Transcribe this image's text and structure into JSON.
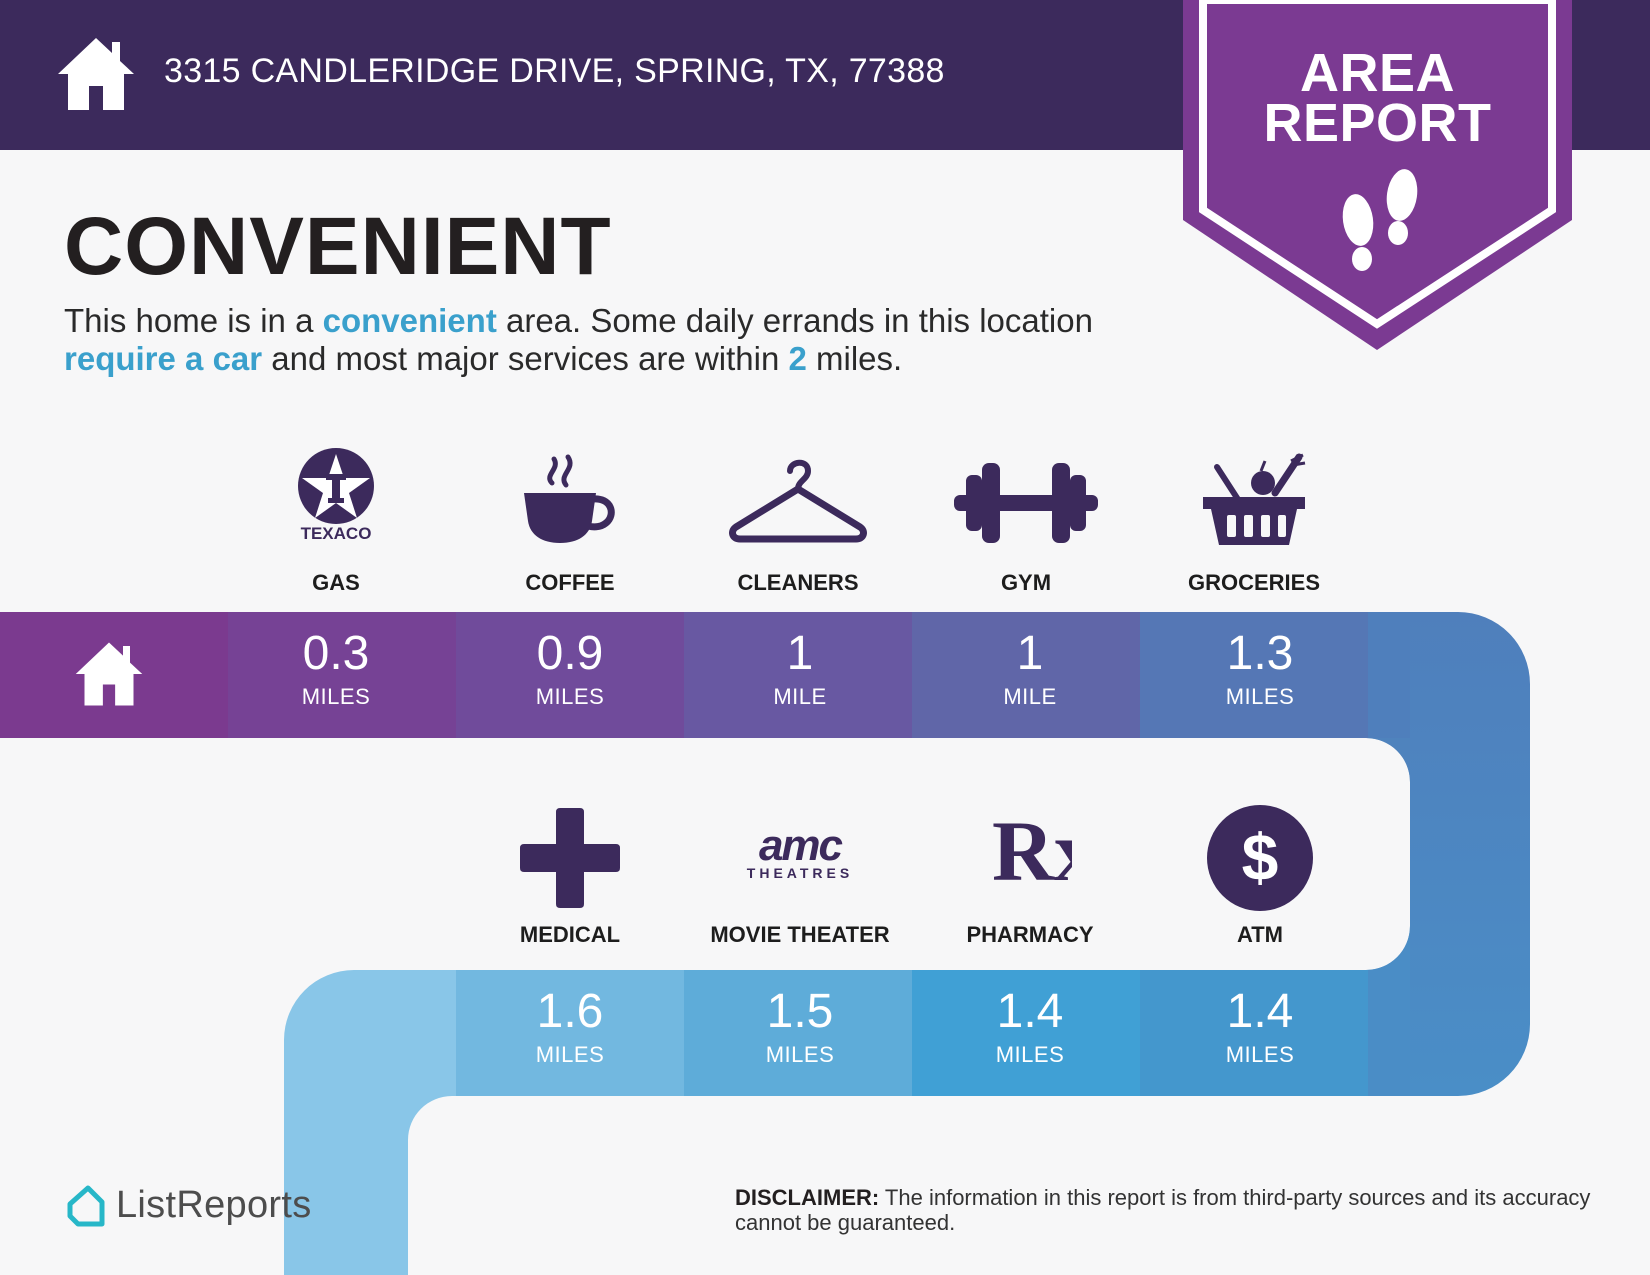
{
  "header": {
    "address": "3315 CANDLERIDGE DRIVE, SPRING, TX, 77388",
    "badge_line1": "AREA",
    "badge_line2": "REPORT"
  },
  "summary": {
    "title": "CONVENIENT",
    "desc_part1": "This home is in a ",
    "desc_hl1": "convenient",
    "desc_part2": " area. Some daily errands in this location ",
    "desc_hl2": "require a car",
    "desc_part3": " and most major services are within ",
    "desc_hl3": "2",
    "desc_part4": " miles."
  },
  "row1": [
    {
      "label": "GAS",
      "distance": "0.3",
      "unit": "MILES",
      "icon": "texaco-logo",
      "icon_text": "TEXACO"
    },
    {
      "label": "COFFEE",
      "distance": "0.9",
      "unit": "MILES",
      "icon": "coffee-cup-icon"
    },
    {
      "label": "CLEANERS",
      "distance": "1",
      "unit": "MILE",
      "icon": "hanger-icon"
    },
    {
      "label": "GYM",
      "distance": "1",
      "unit": "MILE",
      "icon": "dumbbell-icon"
    },
    {
      "label": "GROCERIES",
      "distance": "1.3",
      "unit": "MILES",
      "icon": "grocery-basket-icon"
    }
  ],
  "row2": [
    {
      "label": "MEDICAL",
      "distance": "1.6",
      "unit": "MILES",
      "icon": "medical-cross-icon"
    },
    {
      "label": "MOVIE THEATER",
      "distance": "1.5",
      "unit": "MILES",
      "icon": "amc-logo",
      "icon_text": "amc",
      "icon_subtext": "THEATRES"
    },
    {
      "label": "PHARMACY",
      "distance": "1.4",
      "unit": "MILES",
      "icon": "rx-icon",
      "icon_text": "Rx"
    },
    {
      "label": "ATM",
      "distance": "1.4",
      "unit": "MILES",
      "icon": "dollar-icon",
      "icon_text": "$"
    }
  ],
  "footer": {
    "brand": "ListReports",
    "disclaimer_bold": "DISCLAIMER:",
    "disclaimer_text": " The information in this report is from third-party sources and its accuracy cannot be guaranteed."
  },
  "colors": {
    "header_bg": "#3c2a5c",
    "badge": "#7b3a92",
    "icon": "#3c2a5c",
    "highlight": "#3aa0cc",
    "row1": [
      "#7b3a8f",
      "#764295",
      "#704b9b",
      "#6858a2",
      "#6066a8",
      "#5577b5",
      "#4f83bd"
    ],
    "row2": [
      "#89c6e8",
      "#72b8e0",
      "#5eacd9",
      "#40a0d5",
      "#4497cd",
      "#4a8dc6"
    ]
  }
}
